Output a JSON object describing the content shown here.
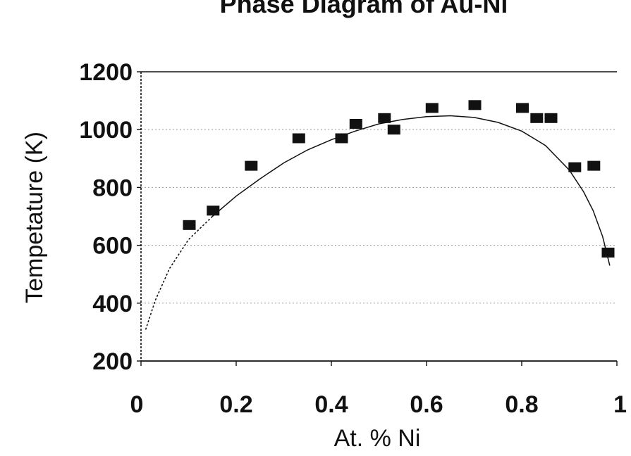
{
  "chart_data": {
    "type": "scatter",
    "title": "Phase Diagram of Au-Ni",
    "xlabel": "At. % Ni",
    "ylabel": "Tempetature (K)",
    "xlim": [
      0,
      1
    ],
    "ylim": [
      200,
      1200
    ],
    "xticks": [
      0,
      0.2,
      0.4,
      0.6,
      0.8,
      1
    ],
    "xtick_labels": [
      "0",
      "0.2",
      "0.4",
      "0.6",
      "0.8",
      "1"
    ],
    "yticks": [
      200,
      400,
      600,
      800,
      1000,
      1200
    ],
    "ytick_labels": [
      "200",
      "400",
      "600",
      "800",
      "1000",
      "1200"
    ],
    "grid": true,
    "legend": "none",
    "colors": {
      "points": "#111111",
      "curve": "#111111",
      "grid": "#999999",
      "axis": "#111111"
    },
    "points": [
      {
        "x": 0.1,
        "y": 670
      },
      {
        "x": 0.15,
        "y": 720
      },
      {
        "x": 0.23,
        "y": 875
      },
      {
        "x": 0.33,
        "y": 970
      },
      {
        "x": 0.42,
        "y": 970
      },
      {
        "x": 0.45,
        "y": 1020
      },
      {
        "x": 0.51,
        "y": 1040
      },
      {
        "x": 0.53,
        "y": 1000
      },
      {
        "x": 0.61,
        "y": 1075
      },
      {
        "x": 0.7,
        "y": 1085
      },
      {
        "x": 0.8,
        "y": 1075
      },
      {
        "x": 0.83,
        "y": 1040
      },
      {
        "x": 0.86,
        "y": 1040
      },
      {
        "x": 0.91,
        "y": 870
      },
      {
        "x": 0.95,
        "y": 875
      },
      {
        "x": 0.98,
        "y": 575
      }
    ],
    "fit_curve": [
      {
        "x": 0.01,
        "y": 310
      },
      {
        "x": 0.03,
        "y": 410
      },
      {
        "x": 0.06,
        "y": 520
      },
      {
        "x": 0.1,
        "y": 620
      },
      {
        "x": 0.15,
        "y": 700
      },
      {
        "x": 0.2,
        "y": 770
      },
      {
        "x": 0.25,
        "y": 830
      },
      {
        "x": 0.3,
        "y": 885
      },
      {
        "x": 0.35,
        "y": 930
      },
      {
        "x": 0.4,
        "y": 965
      },
      {
        "x": 0.45,
        "y": 995
      },
      {
        "x": 0.5,
        "y": 1020
      },
      {
        "x": 0.55,
        "y": 1035
      },
      {
        "x": 0.6,
        "y": 1045
      },
      {
        "x": 0.65,
        "y": 1048
      },
      {
        "x": 0.7,
        "y": 1042
      },
      {
        "x": 0.75,
        "y": 1025
      },
      {
        "x": 0.8,
        "y": 995
      },
      {
        "x": 0.85,
        "y": 945
      },
      {
        "x": 0.9,
        "y": 860
      },
      {
        "x": 0.93,
        "y": 785
      },
      {
        "x": 0.95,
        "y": 720
      },
      {
        "x": 0.97,
        "y": 630
      },
      {
        "x": 0.985,
        "y": 530
      }
    ],
    "fit_dotted_until_x": 0.15
  }
}
